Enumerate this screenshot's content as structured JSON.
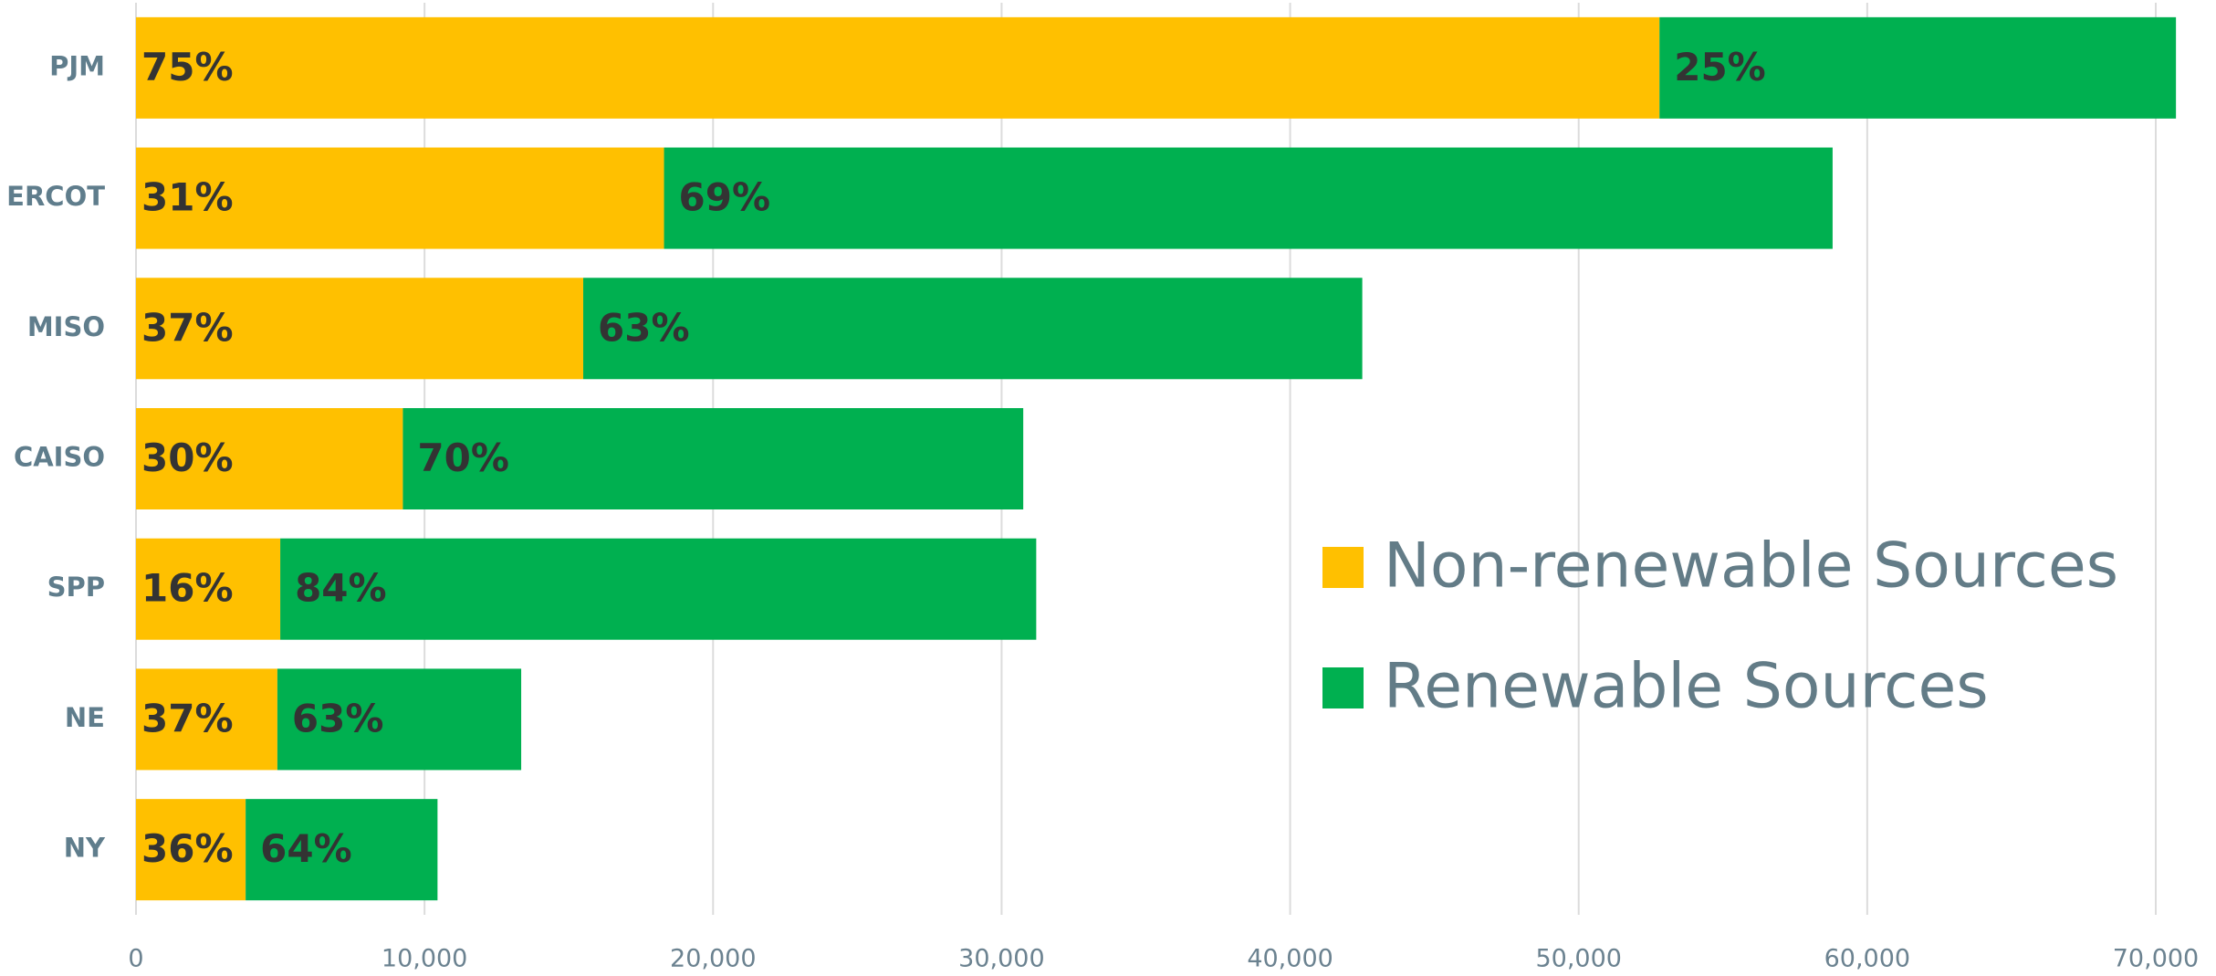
{
  "chart_data": {
    "type": "bar",
    "orientation": "horizontal",
    "stacked": true,
    "categories": [
      "PJM",
      "ERCOT",
      "MISO",
      "CAISO",
      "SPP",
      "NE",
      "NY"
    ],
    "series": [
      {
        "name": "Non-renewable Sources",
        "color": "#ffc000",
        "values": [
          52800,
          18300,
          15500,
          9250,
          5000,
          4900,
          3800
        ],
        "share_labels": [
          "75%",
          "31%",
          "37%",
          "30%",
          "16%",
          "37%",
          "36%"
        ]
      },
      {
        "name": "Renewable Sources",
        "color": "#00b050",
        "values": [
          17900,
          40500,
          27000,
          21500,
          26200,
          8450,
          6650
        ],
        "share_labels": [
          "25%",
          "69%",
          "63%",
          "70%",
          "84%",
          "63%",
          "64%"
        ]
      }
    ],
    "xlim": [
      0,
      70000
    ],
    "xticks": [
      0,
      {
        "value": 10000,
        "label": "10,000"
      },
      {
        "value": 20000,
        "label": "20,000"
      },
      {
        "value": 30000,
        "label": "30,000"
      },
      {
        "value": 40000,
        "label": "40,000"
      },
      {
        "value": 50000,
        "label": "50,000"
      },
      {
        "value": 60000,
        "label": "60,000"
      },
      {
        "value": 70000,
        "label": "70,000"
      }
    ],
    "grid": true
  }
}
